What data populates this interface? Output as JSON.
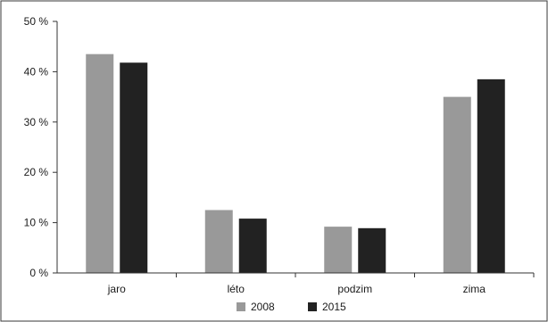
{
  "chart_data": {
    "type": "bar",
    "categories": [
      "jaro",
      "léto",
      "podzim",
      "zima"
    ],
    "series": [
      {
        "name": "2008",
        "values": [
          43.5,
          12.5,
          9.2,
          35.0
        ],
        "color": "#999999"
      },
      {
        "name": "2015",
        "values": [
          41.8,
          10.8,
          8.9,
          38.5
        ],
        "color": "#222222"
      }
    ],
    "y_ticks": [
      "0 %",
      "10 %",
      "20 %",
      "30 %",
      "40 %",
      "50 %"
    ],
    "ylim": [
      0,
      50
    ],
    "grid": false,
    "legend_position": "bottom",
    "title": "",
    "xlabel": "",
    "ylabel": ""
  }
}
